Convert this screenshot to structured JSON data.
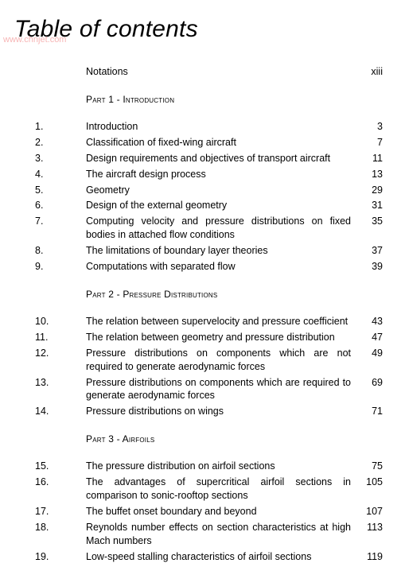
{
  "title": "Table of contents",
  "watermark": "www.chnjet.com",
  "frontmatter": {
    "label": "Notations",
    "page": "xiii"
  },
  "parts": [
    {
      "heading": "Part 1 - Introduction",
      "items": [
        {
          "num": "1.",
          "label": "Introduction",
          "page": "3"
        },
        {
          "num": "2.",
          "label": "Classification of fixed-wing aircraft",
          "page": "7"
        },
        {
          "num": "3.",
          "label": "Design requirements and objectives of transport aircraft",
          "page": "11"
        },
        {
          "num": "4.",
          "label": "The aircraft design process",
          "page": "13"
        },
        {
          "num": "5.",
          "label": "Geometry",
          "page": "29"
        },
        {
          "num": "6.",
          "label": "Design of the external geometry",
          "page": "31"
        },
        {
          "num": "7.",
          "label": "Computing velocity and pressure distributions on fixed bodies in attached flow conditions",
          "page": "35",
          "justify": true
        },
        {
          "num": "8.",
          "label": "The limitations of boundary layer theories",
          "page": "37"
        },
        {
          "num": "9.",
          "label": "Computations with separated flow",
          "page": "39"
        }
      ]
    },
    {
      "heading": "Part 2 - Pressure Distributions",
      "items": [
        {
          "num": "10.",
          "label": "The relation between supervelocity and pressure coefficient",
          "page": "43"
        },
        {
          "num": "11.",
          "label": "The relation between geometry and pressure distribution",
          "page": "47"
        },
        {
          "num": "12.",
          "label": "Pressure distributions on components which are not required to generate aerodynamic forces",
          "page": "49",
          "justify": true
        },
        {
          "num": "13.",
          "label": "Pressure distributions on components which are required to generate aerodynamic forces",
          "page": "69",
          "justify": true
        },
        {
          "num": "14.",
          "label": "Pressure distributions on wings",
          "page": "71"
        }
      ]
    },
    {
      "heading": "Part 3 - Airfoils",
      "items": [
        {
          "num": "15.",
          "label": "The pressure distribution on airfoil sections",
          "page": "75"
        },
        {
          "num": "16.",
          "label": "The advantages of supercritical airfoil sections in comparison to sonic-rooftop sections",
          "page": "105",
          "justify": true
        },
        {
          "num": "17.",
          "label": "The buffet onset boundary and beyond",
          "page": "107"
        },
        {
          "num": "18.",
          "label": "Reynolds number effects on section characteristics at high Mach numbers",
          "page": "113",
          "justify": true
        },
        {
          "num": "19.",
          "label": "Low-speed stalling characteristics of airfoil sections",
          "page": "119"
        }
      ]
    }
  ]
}
